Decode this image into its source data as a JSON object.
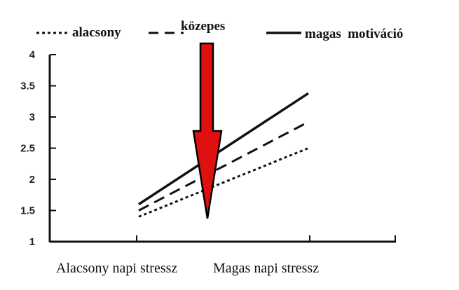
{
  "chart_data": {
    "type": "line",
    "categories": [
      "Alacsony napi stressz",
      "Magas napi stressz"
    ],
    "ylim": [
      1,
      4
    ],
    "yticks": [
      "1",
      "1.5",
      "2",
      "2.5",
      "3",
      "3.5",
      "4"
    ],
    "series": [
      {
        "name": "alacsony",
        "values": [
          1.4,
          2.5
        ],
        "style": "dotted"
      },
      {
        "name": "közepes",
        "values": [
          1.5,
          2.92
        ],
        "style": "dashed"
      },
      {
        "name": "magas  motiváció",
        "values": [
          1.6,
          3.38
        ],
        "style": "solid"
      }
    ],
    "annotation": {
      "type": "arrow",
      "color": "#e01010",
      "direction": "down"
    },
    "grid": false,
    "legend_position": "top"
  }
}
